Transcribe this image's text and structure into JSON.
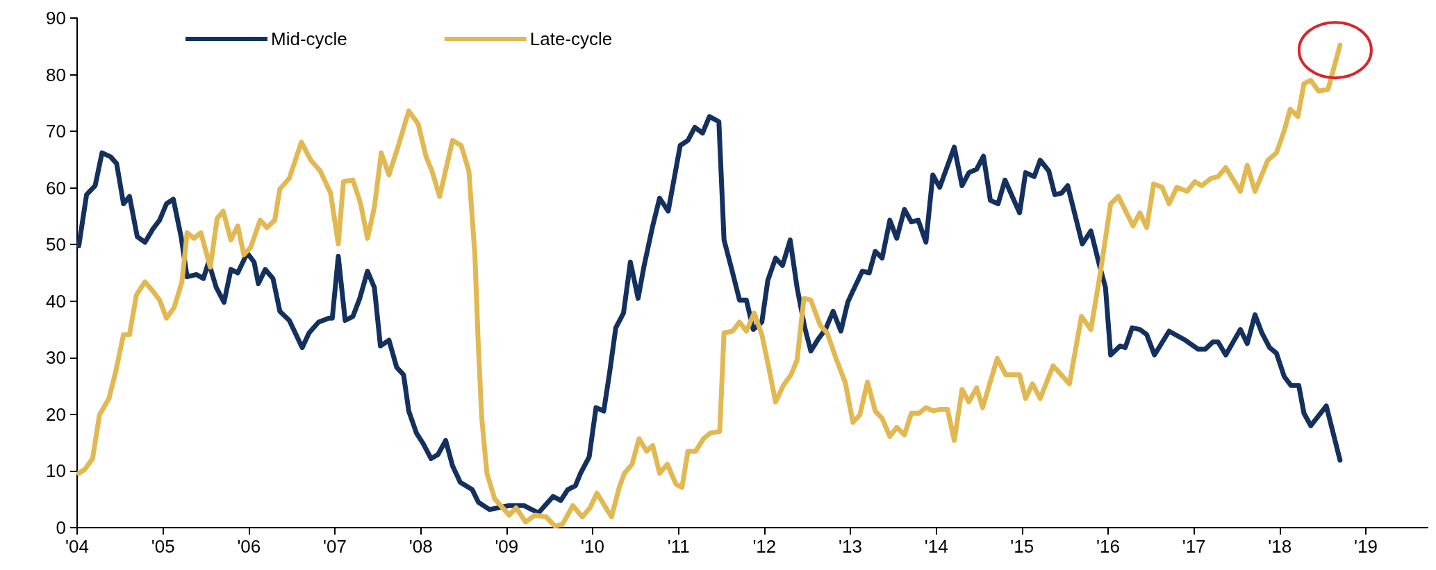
{
  "chart_data": {
    "type": "line",
    "x": [
      2004.02,
      2004.11,
      2004.21,
      2004.29,
      2004.39,
      2004.46,
      2004.54,
      2004.61,
      2004.7,
      2004.79,
      2004.88,
      2004.96,
      2005.04,
      2005.12,
      2005.21,
      2005.28,
      2005.39,
      2005.47,
      2005.53,
      2005.62,
      2005.71,
      2005.79,
      2005.87,
      2005.98,
      2006.06,
      2006.11,
      2006.19,
      2006.28,
      2006.36,
      2006.47,
      2006.62,
      2006.7,
      2006.81,
      2006.93,
      2006.97,
      2007.04,
      2007.12,
      2007.21,
      2007.29,
      2007.38,
      2007.46,
      2007.53,
      2007.63,
      2007.72,
      2007.8,
      2007.86,
      2007.95,
      2008.03,
      2008.12,
      2008.2,
      2008.29,
      2008.37,
      2008.46,
      2008.6,
      2008.67,
      2008.8,
      2009.03,
      2009.2,
      2009.37,
      2009.54,
      2009.63,
      2009.71,
      2009.8,
      2009.86,
      2009.96,
      2010.04,
      2010.13,
      2010.2,
      2010.27,
      2010.36,
      2010.44,
      2010.53,
      2010.6,
      2010.7,
      2010.78,
      2010.88,
      2011.02,
      2011.11,
      2011.19,
      2011.28,
      2011.36,
      2011.47,
      2011.53,
      2011.62,
      2011.71,
      2011.79,
      2011.87,
      2011.97,
      2012.04,
      2012.13,
      2012.21,
      2012.3,
      2012.38,
      2012.47,
      2012.54,
      2012.63,
      2012.71,
      2012.8,
      2012.89,
      2012.97,
      2013.03,
      2013.14,
      2013.22,
      2013.29,
      2013.37,
      2013.46,
      2013.54,
      2013.63,
      2013.71,
      2013.79,
      2013.88,
      2013.96,
      2014.04,
      2014.21,
      2014.3,
      2014.38,
      2014.47,
      2014.55,
      2014.63,
      2014.72,
      2014.8,
      2014.97,
      2015.04,
      2015.14,
      2015.21,
      2015.31,
      2015.38,
      2015.46,
      2015.53,
      2015.7,
      2015.8,
      2015.89,
      2015.97,
      2016.03,
      2016.14,
      2016.2,
      2016.28,
      2016.37,
      2016.45,
      2016.54,
      2016.71,
      2016.9,
      2017.05,
      2017.13,
      2017.22,
      2017.28,
      2017.37,
      2017.54,
      2017.62,
      2017.71,
      2017.79,
      2017.88,
      2017.96,
      2018.05,
      2018.13,
      2018.22,
      2018.28,
      2018.36,
      2018.54,
      2018.7
    ],
    "xlim": [
      2004,
      2019.72
    ],
    "xticks": [
      {
        "value": 2004,
        "label": "'04"
      },
      {
        "value": 2005,
        "label": "'05"
      },
      {
        "value": 2006,
        "label": "'06"
      },
      {
        "value": 2007,
        "label": "'07"
      },
      {
        "value": 2008,
        "label": "'08"
      },
      {
        "value": 2009,
        "label": "'09"
      },
      {
        "value": 2010,
        "label": "'10"
      },
      {
        "value": 2011,
        "label": "'11"
      },
      {
        "value": 2012,
        "label": "'12"
      },
      {
        "value": 2013,
        "label": "'13"
      },
      {
        "value": 2014,
        "label": "'14"
      },
      {
        "value": 2015,
        "label": "'15"
      },
      {
        "value": 2016,
        "label": "'16"
      },
      {
        "value": 2017,
        "label": "'17"
      },
      {
        "value": 2018,
        "label": "'18"
      },
      {
        "value": 2019,
        "label": "'19"
      }
    ],
    "ylim": [
      0,
      90
    ],
    "yticks": [
      0,
      10,
      20,
      30,
      40,
      50,
      60,
      70,
      80,
      90
    ],
    "grid": false,
    "legend": "top left",
    "marker": "none",
    "series": [
      {
        "name": "Mid-cycle",
        "color": "#14305e",
        "values": [
          49.8,
          58.8,
          60.4,
          66.2,
          65.5,
          64.3,
          57.2,
          58.5,
          51.4,
          50.4,
          52.7,
          54.3,
          57.2,
          58.0,
          51.4,
          44.3,
          44.7,
          44.0,
          46.9,
          42.4,
          39.8,
          45.6,
          45.0,
          48.5,
          46.9,
          43.1,
          45.6,
          44.0,
          38.2,
          36.6,
          31.8,
          34.4,
          36.3,
          37.0,
          37.0,
          47.9,
          36.6,
          37.3,
          40.5,
          45.3,
          42.4,
          32.1,
          33.1,
          28.3,
          27.0,
          20.6,
          16.7,
          14.8,
          12.2,
          12.9,
          15.4,
          10.9,
          8.0,
          6.7,
          4.5,
          3.2,
          3.9,
          3.9,
          2.6,
          5.5,
          4.8,
          6.7,
          7.4,
          9.6,
          12.5,
          21.2,
          20.6,
          27.6,
          35.3,
          37.9,
          46.9,
          40.5,
          46.3,
          53.3,
          58.2,
          55.9,
          67.5,
          68.4,
          70.7,
          69.7,
          72.6,
          71.7,
          50.8,
          45.6,
          40.2,
          40.2,
          35.0,
          36.3,
          43.7,
          47.6,
          46.3,
          50.8,
          42.4,
          35.3,
          31.2,
          33.4,
          35.0,
          38.2,
          34.7,
          39.8,
          41.8,
          45.3,
          45.0,
          48.8,
          47.6,
          54.3,
          51.1,
          56.2,
          54.0,
          54.3,
          50.4,
          62.3,
          60.1,
          67.2,
          60.4,
          62.7,
          63.3,
          65.6,
          57.8,
          57.2,
          61.4,
          55.6,
          62.7,
          62.0,
          64.9,
          63.0,
          58.8,
          59.1,
          60.4,
          50.1,
          52.4,
          46.9,
          42.4,
          30.5,
          32.1,
          31.8,
          35.3,
          35.0,
          34.1,
          30.5,
          34.7,
          33.1,
          31.5,
          31.5,
          32.8,
          32.8,
          30.5,
          35.0,
          32.5,
          37.6,
          34.4,
          31.8,
          30.8,
          26.7,
          25.1,
          25.1,
          20.2,
          18.0,
          21.5,
          11.9
        ]
      },
      {
        "name": "Late-cycle",
        "color": "#e1b852",
        "x": [
          2004.02,
          2004.09,
          2004.18,
          2004.26,
          2004.37,
          2004.45,
          2004.54,
          2004.61,
          2004.69,
          2004.79,
          2004.88,
          2004.96,
          2005.04,
          2005.13,
          2005.22,
          2005.28,
          2005.36,
          2005.44,
          2005.55,
          2005.63,
          2005.7,
          2005.79,
          2005.87,
          2005.94,
          2006.02,
          2006.13,
          2006.21,
          2006.3,
          2006.36,
          2006.47,
          2006.61,
          2006.72,
          2006.83,
          2006.95,
          2007.04,
          2007.1,
          2007.21,
          2007.3,
          2007.38,
          2007.46,
          2007.54,
          2007.63,
          2007.74,
          2007.86,
          2007.97,
          2008.06,
          2008.13,
          2008.22,
          2008.37,
          2008.47,
          2008.56,
          2008.63,
          2008.67,
          2008.71,
          2008.77,
          2008.86,
          2009.03,
          2009.11,
          2009.22,
          2009.33,
          2009.46,
          2009.56,
          2009.65,
          2009.77,
          2009.88,
          2009.97,
          2010.05,
          2010.22,
          2010.31,
          2010.37,
          2010.46,
          2010.54,
          2010.63,
          2010.7,
          2010.78,
          2010.87,
          2010.97,
          2011.04,
          2011.11,
          2011.2,
          2011.29,
          2011.37,
          2011.48,
          2011.53,
          2011.63,
          2011.71,
          2011.79,
          2011.88,
          2011.97,
          2012.05,
          2012.13,
          2012.22,
          2012.31,
          2012.38,
          2012.46,
          2012.54,
          2012.65,
          2012.73,
          2012.84,
          2012.94,
          2013.03,
          2013.11,
          2013.2,
          2013.29,
          2013.37,
          2013.46,
          2013.54,
          2013.63,
          2013.71,
          2013.8,
          2013.88,
          2013.97,
          2014.04,
          2014.13,
          2014.21,
          2014.3,
          2014.38,
          2014.47,
          2014.54,
          2014.71,
          2014.81,
          2014.97,
          2015.04,
          2015.12,
          2015.21,
          2015.36,
          2015.55,
          2015.69,
          2015.8,
          2015.91,
          2016.03,
          2016.12,
          2016.29,
          2016.37,
          2016.45,
          2016.53,
          2016.63,
          2016.71,
          2016.8,
          2016.92,
          2017.01,
          2017.09,
          2017.2,
          2017.28,
          2017.37,
          2017.54,
          2017.62,
          2017.71,
          2017.86,
          2017.96,
          2018.05,
          2018.12,
          2018.21,
          2018.28,
          2018.36,
          2018.45,
          2018.56,
          2018.7
        ],
        "values": [
          9.6,
          10.3,
          12.2,
          19.9,
          22.8,
          27.6,
          34.1,
          34.1,
          41.1,
          43.4,
          41.8,
          40.2,
          37.0,
          38.9,
          43.4,
          52.1,
          51.1,
          52.1,
          46.0,
          54.6,
          55.9,
          50.8,
          53.3,
          48.2,
          49.5,
          54.3,
          53.0,
          54.3,
          59.8,
          61.7,
          68.1,
          64.9,
          63.0,
          59.1,
          50.1,
          61.1,
          61.4,
          57.2,
          51.1,
          56.6,
          66.2,
          62.3,
          67.5,
          73.6,
          71.3,
          65.6,
          63.0,
          58.5,
          68.4,
          67.5,
          63.0,
          48.2,
          32.1,
          19.3,
          9.6,
          5.1,
          2.2,
          3.5,
          1.0,
          2.2,
          1.9,
          0.3,
          0.6,
          3.9,
          1.9,
          3.5,
          6.1,
          1.9,
          7.1,
          9.6,
          11.2,
          15.7,
          13.5,
          14.5,
          9.6,
          11.2,
          7.7,
          7.1,
          13.5,
          13.5,
          15.7,
          16.7,
          17.0,
          34.4,
          34.7,
          36.3,
          34.7,
          37.9,
          34.1,
          28.3,
          22.2,
          25.1,
          27.0,
          29.6,
          40.5,
          40.2,
          35.7,
          34.4,
          29.6,
          25.7,
          18.6,
          19.9,
          25.7,
          20.6,
          19.3,
          16.1,
          17.7,
          16.4,
          20.2,
          20.2,
          21.2,
          20.6,
          20.9,
          20.9,
          15.4,
          24.4,
          22.2,
          24.7,
          21.2,
          29.9,
          27.0,
          27.0,
          22.8,
          25.4,
          22.8,
          28.6,
          25.4,
          37.3,
          35.0,
          45.0,
          57.2,
          58.5,
          53.3,
          55.6,
          53.0,
          60.7,
          60.1,
          57.2,
          60.1,
          59.4,
          61.1,
          60.4,
          61.7,
          62.0,
          63.6,
          59.4,
          64.0,
          59.4,
          64.9,
          66.2,
          70.1,
          73.9,
          72.6,
          78.4,
          79.0,
          77.1,
          77.4,
          85.2
        ]
      }
    ]
  }
}
